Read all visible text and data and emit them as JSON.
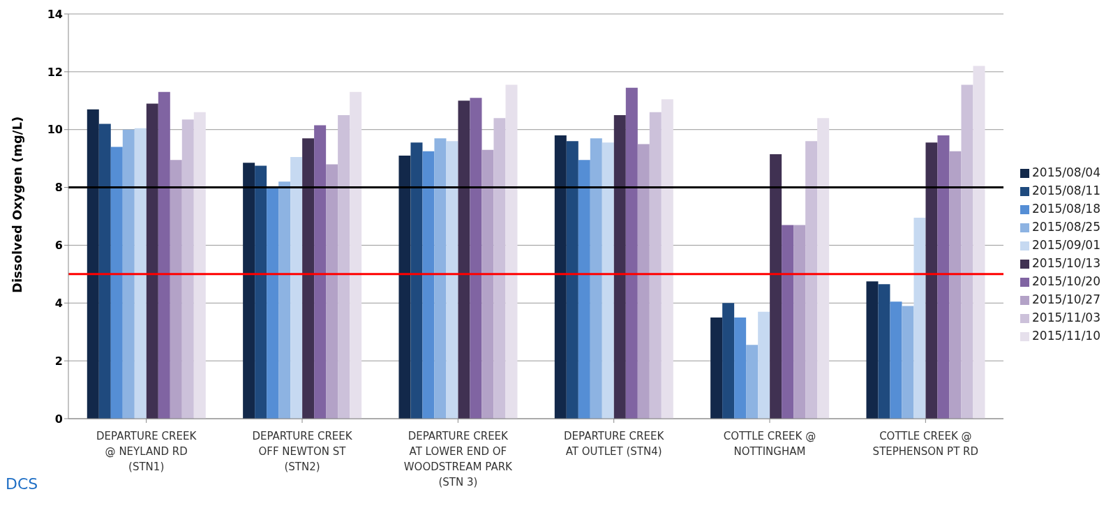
{
  "chart_data": {
    "type": "bar",
    "ylabel": "Dissolved Oxygen (mg/L)",
    "categories": [
      "DEPARTURE CREEK @ NEYLAND RD (STN1)",
      "DEPARTURE CREEK OFF NEWTON ST (STN2)",
      "DEPARTURE CREEK AT LOWER END OF WOODSTREAM PARK (STN 3)",
      "DEPARTURE CREEK AT OUTLET (STN4)",
      "COTTLE CREEK @ NOTTINGHAM",
      "COTTLE CREEK @ STEPHENSON PT RD"
    ],
    "series": [
      {
        "name": "2015/08/04",
        "color": "#12284a",
        "values": [
          10.7,
          8.85,
          9.1,
          9.8,
          3.5,
          4.75
        ]
      },
      {
        "name": "2015/08/11",
        "color": "#1f4a7e",
        "values": [
          10.2,
          8.75,
          9.55,
          9.6,
          4.0,
          4.65
        ]
      },
      {
        "name": "2015/08/18",
        "color": "#558ed5",
        "values": [
          9.4,
          8.0,
          9.25,
          8.95,
          3.5,
          4.05
        ]
      },
      {
        "name": "2015/08/25",
        "color": "#8db3e2",
        "values": [
          10.0,
          8.2,
          9.7,
          9.7,
          2.55,
          3.9
        ]
      },
      {
        "name": "2015/09/01",
        "color": "#c6d9f1",
        "values": [
          10.05,
          9.05,
          9.6,
          9.55,
          3.7,
          6.95
        ]
      },
      {
        "name": "2015/10/13",
        "color": "#403152",
        "values": [
          10.9,
          9.7,
          11.0,
          10.5,
          9.15,
          9.55
        ]
      },
      {
        "name": "2015/10/20",
        "color": "#8064a2",
        "values": [
          11.3,
          10.15,
          11.1,
          11.45,
          6.7,
          9.8
        ]
      },
      {
        "name": "2015/10/27",
        "color": "#b3a2c7",
        "values": [
          8.95,
          8.8,
          9.3,
          9.5,
          6.7,
          9.25
        ]
      },
      {
        "name": "2015/11/03",
        "color": "#ccc1da",
        "values": [
          10.35,
          10.5,
          10.4,
          10.6,
          9.6,
          11.55
        ]
      },
      {
        "name": "2015/11/10",
        "color": "#e6e0ec",
        "values": [
          10.6,
          11.3,
          11.55,
          11.05,
          10.4,
          12.2
        ]
      }
    ],
    "ylim": [
      0,
      14
    ],
    "yticks": [
      0,
      2,
      4,
      6,
      8,
      10,
      12,
      14
    ],
    "grid": "y",
    "legend": "right",
    "ref_lines": [
      {
        "axis": "y",
        "value": 8,
        "color": "#000000"
      },
      {
        "axis": "y",
        "value": 5,
        "color": "#ff0000"
      }
    ],
    "annotations": [
      "DCS"
    ]
  }
}
